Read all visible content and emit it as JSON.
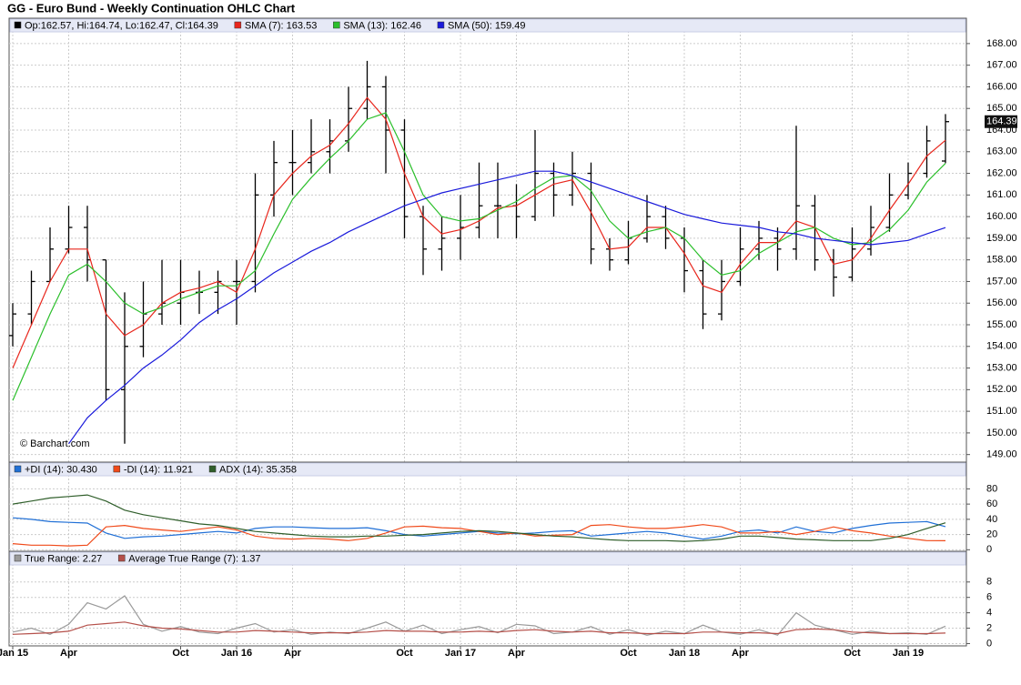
{
  "chart_data": [
    {
      "type": "ohlc",
      "title": "GG - Euro Bund - Weekly Continuation OHLC Chart",
      "annotation": "© Barchart.com",
      "ohlc_label": "Op:162.57, Hi:164.74, Lo:162.47, Cl:164.39",
      "ohlc_color": "#000000",
      "open": [
        154.5,
        155.5,
        157,
        158.5,
        159.5,
        158,
        152,
        154,
        155.5,
        156,
        156.5,
        156.5,
        157,
        157,
        161,
        162.5,
        162.5,
        163,
        163.5,
        165,
        166,
        164,
        160,
        158.5,
        159,
        159.5,
        160.5,
        160.5,
        160,
        162,
        161,
        162,
        158.5,
        158,
        159,
        160,
        159,
        157.5,
        155.5,
        157,
        158.5,
        159,
        158.5,
        160.5,
        158,
        157.2,
        158.5,
        159.5,
        161,
        162,
        162.57
      ],
      "high": [
        156,
        157.5,
        159.5,
        160.5,
        160.5,
        158,
        156.5,
        157,
        158,
        158,
        157.5,
        157.5,
        158,
        162,
        163.5,
        164,
        164.5,
        164.5,
        166,
        167.2,
        166.5,
        164.5,
        160.5,
        160,
        161,
        162.5,
        162.5,
        161.5,
        164,
        162.5,
        163,
        162.5,
        159,
        159.8,
        161,
        160.5,
        159.5,
        158,
        158,
        159.5,
        159.8,
        159.5,
        164.2,
        161,
        158.5,
        159.5,
        160.5,
        162,
        162.5,
        164.2,
        164.74
      ],
      "low": [
        154,
        155,
        157,
        158.3,
        157,
        151.5,
        149.5,
        153.5,
        155,
        155,
        155.5,
        155.5,
        155,
        156.5,
        160,
        161,
        162,
        162,
        163,
        164.5,
        162,
        159,
        157.3,
        157.5,
        158,
        159,
        159,
        159,
        159.8,
        160,
        160.5,
        157.8,
        157.5,
        157.8,
        158.8,
        158.5,
        156.5,
        154.8,
        155.2,
        156.8,
        158,
        157.5,
        158,
        157.5,
        156.3,
        157,
        158.2,
        159.3,
        160.8,
        161.8,
        162.47
      ],
      "close": [
        155.5,
        157,
        158.5,
        159.5,
        158,
        152,
        154,
        155.5,
        156,
        156.5,
        156.5,
        157,
        157,
        161,
        162.5,
        162.5,
        163,
        163.5,
        165,
        166,
        164,
        160,
        158.5,
        159,
        159.5,
        160.5,
        160.5,
        160,
        162,
        161,
        162,
        158.5,
        158,
        159,
        160,
        159,
        157.5,
        155.5,
        157,
        158.5,
        159,
        158.5,
        160.5,
        158,
        157.2,
        158.5,
        159.5,
        161,
        162,
        163.5,
        164.39
      ],
      "series": [
        {
          "name": "SMA (7): 163.53",
          "color": "#e8261c",
          "values": [
            153,
            155,
            157,
            158.5,
            158.5,
            155.5,
            154.5,
            155,
            156,
            156.5,
            156.7,
            157,
            156.5,
            158.5,
            161,
            162,
            162.8,
            163.3,
            164.3,
            165.5,
            164.5,
            162,
            160,
            159.2,
            159.4,
            159.8,
            160.4,
            160.5,
            161,
            161.5,
            161.7,
            160.2,
            158.5,
            158.6,
            159.5,
            159.5,
            158.3,
            156.8,
            156.5,
            157.8,
            158.8,
            158.8,
            159.8,
            159.5,
            157.8,
            158,
            159,
            160.3,
            161.5,
            162.8,
            163.53
          ]
        },
        {
          "name": "SMA (13): 162.46",
          "color": "#2bbf2b",
          "values": [
            151.5,
            153.5,
            155.5,
            157.3,
            157.8,
            157,
            156,
            155.5,
            155.8,
            156.2,
            156.5,
            156.8,
            156.8,
            157.5,
            159.2,
            160.8,
            161.8,
            162.7,
            163.5,
            164.5,
            164.8,
            163,
            161,
            160,
            159.8,
            159.9,
            160.3,
            160.7,
            161.3,
            161.8,
            161.9,
            161.2,
            159.8,
            159,
            159.3,
            159.5,
            159,
            158,
            157.3,
            157.5,
            158.3,
            158.8,
            159.3,
            159.5,
            159,
            158.7,
            158.8,
            159.4,
            160.3,
            161.6,
            162.46
          ]
        },
        {
          "name": "SMA (50): 159.49",
          "color": "#1a1adb",
          "values": [
            null,
            null,
            null,
            149.5,
            150.7,
            151.5,
            152.2,
            153,
            153.6,
            154.3,
            155.1,
            155.7,
            156.2,
            156.8,
            157.4,
            157.9,
            158.4,
            158.8,
            159.3,
            159.7,
            160.1,
            160.5,
            160.8,
            161.1,
            161.3,
            161.5,
            161.7,
            161.9,
            162.1,
            162.1,
            161.9,
            161.6,
            161.3,
            161,
            160.7,
            160.4,
            160.1,
            159.9,
            159.7,
            159.6,
            159.5,
            159.3,
            159.2,
            159,
            158.9,
            158.8,
            158.7,
            158.8,
            158.9,
            159.2,
            159.49
          ]
        }
      ],
      "ylim": [
        148.65,
        168.5
      ],
      "yticks": [
        {
          "value": 149,
          "label": "149.00"
        },
        {
          "value": 150,
          "label": "150.00"
        },
        {
          "value": 151,
          "label": "151.00"
        },
        {
          "value": 152,
          "label": "152.00"
        },
        {
          "value": 153,
          "label": "153.00"
        },
        {
          "value": 154,
          "label": "154.00"
        },
        {
          "value": 155,
          "label": "155.00"
        },
        {
          "value": 156,
          "label": "156.00"
        },
        {
          "value": 157,
          "label": "157.00"
        },
        {
          "value": 158,
          "label": "158.00"
        },
        {
          "value": 159,
          "label": "159.00"
        },
        {
          "value": 160,
          "label": "160.00"
        },
        {
          "value": 161,
          "label": "161.00"
        },
        {
          "value": 162,
          "label": "162.00"
        },
        {
          "value": 163,
          "label": "163.00"
        },
        {
          "value": 164,
          "label": "164.00"
        },
        {
          "value": 165,
          "label": "165.00"
        },
        {
          "value": 166,
          "label": "166.00"
        },
        {
          "value": 167,
          "label": "167.00"
        },
        {
          "value": 168,
          "label": "168.00"
        }
      ],
      "grid": true
    },
    {
      "type": "line",
      "series": [
        {
          "name": "+DI (14): 30.430",
          "color": "#1f6fd6",
          "values": [
            42,
            40,
            37,
            36,
            35,
            22,
            15,
            17,
            18,
            20,
            22,
            24,
            22,
            28,
            30,
            30,
            29,
            28,
            28,
            29,
            25,
            20,
            18,
            20,
            22,
            24,
            22,
            21,
            22,
            24,
            25,
            18,
            20,
            22,
            24,
            22,
            18,
            14,
            18,
            24,
            26,
            22,
            30,
            24,
            22,
            28,
            32,
            35,
            36,
            37,
            30.43
          ]
        },
        {
          "name": "-DI (14): 11.921",
          "color": "#f04a1a",
          "values": [
            8,
            6,
            6,
            5,
            6,
            30,
            32,
            28,
            26,
            24,
            27,
            30,
            26,
            18,
            15,
            14,
            15,
            14,
            12,
            15,
            22,
            30,
            31,
            29,
            28,
            24,
            20,
            22,
            18,
            19,
            20,
            32,
            33,
            30,
            28,
            28,
            30,
            33,
            30,
            22,
            22,
            24,
            20,
            24,
            30,
            25,
            22,
            18,
            15,
            12,
            11.921
          ]
        },
        {
          "name": "ADX (14): 35.358",
          "color": "#2f5e2a",
          "values": [
            60,
            64,
            68,
            70,
            72,
            64,
            52,
            46,
            42,
            38,
            34,
            32,
            28,
            24,
            22,
            20,
            18,
            17,
            17,
            18,
            18,
            19,
            20,
            22,
            24,
            25,
            24,
            22,
            20,
            18,
            17,
            15,
            13,
            12,
            12,
            12,
            11,
            12,
            14,
            18,
            18,
            16,
            14,
            13,
            12,
            12,
            12,
            15,
            20,
            28,
            35.358
          ]
        }
      ],
      "ylim": [
        -2,
        96
      ],
      "yticks": [
        0,
        20,
        40,
        60,
        80
      ],
      "grid": true
    },
    {
      "type": "line",
      "series": [
        {
          "name": "True Range: 2.27",
          "color": "#9a9a9a",
          "values": [
            1.5,
            2,
            1.2,
            2.5,
            5.3,
            4.5,
            6.2,
            2.5,
            1.6,
            2.2,
            1.5,
            1.3,
            2,
            2.6,
            1.5,
            1.8,
            1.2,
            1.5,
            1.3,
            2,
            2.8,
            1.6,
            2.4,
            1.3,
            1.8,
            2.2,
            1.4,
            2.5,
            2.3,
            1.3,
            1.5,
            2.2,
            1.2,
            1.8,
            1.1,
            1.6,
            1.3,
            2.4,
            1.5,
            1.2,
            1.8,
            1.1,
            4,
            2.4,
            1.8,
            1.2,
            1.6,
            1.3,
            1.4,
            1.2,
            2.27
          ]
        },
        {
          "name": "Average True Range (7): 1.37",
          "color": "#b5504a",
          "values": [
            1.2,
            1.3,
            1.4,
            1.6,
            2.4,
            2.6,
            2.8,
            2.3,
            2,
            1.9,
            1.7,
            1.5,
            1.5,
            1.7,
            1.6,
            1.5,
            1.4,
            1.4,
            1.4,
            1.5,
            1.7,
            1.6,
            1.6,
            1.5,
            1.5,
            1.6,
            1.5,
            1.7,
            1.8,
            1.6,
            1.5,
            1.6,
            1.4,
            1.4,
            1.3,
            1.3,
            1.3,
            1.5,
            1.5,
            1.4,
            1.4,
            1.3,
            1.8,
            1.9,
            1.8,
            1.5,
            1.4,
            1.3,
            1.3,
            1.3,
            1.37
          ]
        }
      ],
      "categories": [
        "Jan 15",
        null,
        null,
        "Apr",
        null,
        null,
        null,
        null,
        null,
        "Oct",
        null,
        null,
        "Jan 16",
        null,
        null,
        "Apr",
        null,
        null,
        null,
        null,
        null,
        "Oct",
        null,
        null,
        "Jan 17",
        null,
        null,
        "Apr",
        null,
        null,
        null,
        null,
        null,
        "Oct",
        null,
        null,
        "Jan 18",
        null,
        null,
        "Apr",
        null,
        null,
        null,
        null,
        null,
        "Oct",
        null,
        null,
        "Jan 19",
        null,
        null
      ],
      "ylim": [
        -0.3,
        10.1
      ],
      "yticks": [
        0,
        2,
        4,
        6,
        8
      ],
      "grid": true
    }
  ]
}
